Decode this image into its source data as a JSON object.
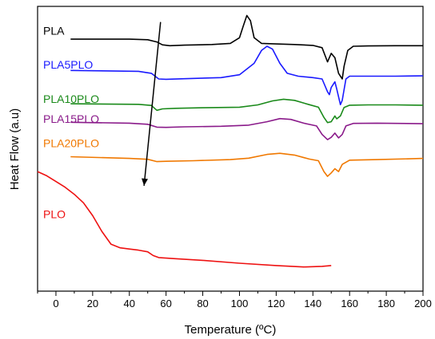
{
  "chart_data": {
    "type": "line",
    "title": "",
    "xlabel": "Temperature (ºC)",
    "ylabel": "Heat Flow (a.u)",
    "xlim": [
      -10,
      200
    ],
    "ylim": [
      0,
      100
    ],
    "xticks": [
      0,
      20,
      40,
      60,
      80,
      100,
      120,
      140,
      160,
      180,
      200
    ],
    "grid": false,
    "legend": "inline labels",
    "annotations": [
      {
        "type": "arrow",
        "from": [
          57,
          94.5
        ],
        "to": [
          48,
          37
        ]
      }
    ],
    "series": [
      {
        "name": "PLA",
        "color": "#000000",
        "label_at": [
          -10,
          91.5
        ],
        "points": [
          [
            8,
            88.5
          ],
          [
            40,
            88.5
          ],
          [
            50,
            88.3
          ],
          [
            55,
            87.5
          ],
          [
            58,
            86.5
          ],
          [
            62,
            86.2
          ],
          [
            70,
            86.4
          ],
          [
            85,
            86.6
          ],
          [
            95,
            87
          ],
          [
            100,
            89
          ],
          [
            102,
            93
          ],
          [
            104,
            96.8
          ],
          [
            106,
            95
          ],
          [
            108,
            89
          ],
          [
            112,
            87
          ],
          [
            120,
            86.8
          ],
          [
            130,
            86.6
          ],
          [
            140,
            86.3
          ],
          [
            145,
            85.5
          ],
          [
            148,
            80.5
          ],
          [
            150,
            83.5
          ],
          [
            152,
            82
          ],
          [
            154,
            76.5
          ],
          [
            156,
            74.5
          ],
          [
            157,
            79
          ],
          [
            159,
            84.5
          ],
          [
            162,
            86
          ],
          [
            170,
            86.1
          ],
          [
            185,
            86.2
          ],
          [
            200,
            86.2
          ]
        ]
      },
      {
        "name": "PLA5PLO",
        "color": "#1a1aff",
        "label_at": [
          -10,
          79.5
        ],
        "points": [
          [
            8,
            77.5
          ],
          [
            45,
            77.2
          ],
          [
            52,
            76.5
          ],
          [
            56,
            74.5
          ],
          [
            60,
            74.4
          ],
          [
            70,
            74.6
          ],
          [
            90,
            75
          ],
          [
            100,
            76
          ],
          [
            108,
            80
          ],
          [
            112,
            84.5
          ],
          [
            115,
            86
          ],
          [
            118,
            85
          ],
          [
            122,
            80
          ],
          [
            126,
            76.5
          ],
          [
            132,
            75.5
          ],
          [
            140,
            75
          ],
          [
            145,
            74.5
          ],
          [
            148,
            70
          ],
          [
            149,
            69
          ],
          [
            150,
            71.5
          ],
          [
            152,
            73.5
          ],
          [
            153,
            71
          ],
          [
            155,
            65.5
          ],
          [
            156,
            67
          ],
          [
            158,
            74.5
          ],
          [
            160,
            75.5
          ],
          [
            170,
            75.5
          ],
          [
            185,
            75.5
          ],
          [
            200,
            75.6
          ]
        ]
      },
      {
        "name": "PLA10PLO",
        "color": "#1a8a1a",
        "label_at": [
          -10,
          67.5
        ],
        "points": [
          [
            8,
            65.8
          ],
          [
            45,
            65.6
          ],
          [
            52,
            65.2
          ],
          [
            55,
            63.5
          ],
          [
            58,
            64
          ],
          [
            65,
            64.2
          ],
          [
            80,
            64.4
          ],
          [
            100,
            64.6
          ],
          [
            110,
            65.4
          ],
          [
            118,
            66.8
          ],
          [
            124,
            67.4
          ],
          [
            130,
            67
          ],
          [
            138,
            65.5
          ],
          [
            143,
            64.6
          ],
          [
            146,
            61
          ],
          [
            148,
            59.2
          ],
          [
            150,
            59.5
          ],
          [
            152,
            61.5
          ],
          [
            153,
            60.5
          ],
          [
            155,
            61.5
          ],
          [
            157,
            64.5
          ],
          [
            160,
            65.3
          ],
          [
            170,
            65.4
          ],
          [
            185,
            65.4
          ],
          [
            200,
            65.3
          ]
        ]
      },
      {
        "name": "PLA15PLO",
        "color": "#8a1a8a",
        "label_at": [
          -10,
          60.5
        ],
        "points": [
          [
            8,
            59.3
          ],
          [
            40,
            59
          ],
          [
            50,
            58.6
          ],
          [
            55,
            57.6
          ],
          [
            60,
            57.5
          ],
          [
            70,
            57.7
          ],
          [
            90,
            57.9
          ],
          [
            105,
            58.3
          ],
          [
            115,
            59.5
          ],
          [
            122,
            60.6
          ],
          [
            128,
            60.3
          ],
          [
            135,
            59
          ],
          [
            142,
            58
          ],
          [
            145,
            55
          ],
          [
            148,
            53.2
          ],
          [
            150,
            54
          ],
          [
            152,
            55.5
          ],
          [
            154,
            53.8
          ],
          [
            156,
            55
          ],
          [
            158,
            58
          ],
          [
            162,
            58.9
          ],
          [
            175,
            59
          ],
          [
            200,
            58.8
          ]
        ]
      },
      {
        "name": "PLA20PLO",
        "color": "#f07800",
        "label_at": [
          -10,
          52
        ],
        "points": [
          [
            8,
            47.2
          ],
          [
            40,
            46.6
          ],
          [
            50,
            46.3
          ],
          [
            55,
            45.5
          ],
          [
            60,
            45.6
          ],
          [
            75,
            45.8
          ],
          [
            95,
            46.2
          ],
          [
            105,
            46.7
          ],
          [
            115,
            48
          ],
          [
            122,
            48.4
          ],
          [
            130,
            47.8
          ],
          [
            138,
            46.4
          ],
          [
            143,
            45.8
          ],
          [
            146,
            42
          ],
          [
            148,
            40.3
          ],
          [
            150,
            41.5
          ],
          [
            152,
            43
          ],
          [
            154,
            42
          ],
          [
            156,
            44.5
          ],
          [
            160,
            46
          ],
          [
            175,
            46.2
          ],
          [
            200,
            46.6
          ]
        ]
      },
      {
        "name": "PLO",
        "color": "#ee1111",
        "label_at": [
          -10,
          27
        ],
        "points": [
          [
            -10,
            42
          ],
          [
            -5,
            40.5
          ],
          [
            0,
            38.5
          ],
          [
            5,
            36.5
          ],
          [
            10,
            34
          ],
          [
            15,
            31
          ],
          [
            20,
            26.5
          ],
          [
            25,
            21
          ],
          [
            30,
            16.5
          ],
          [
            35,
            15.2
          ],
          [
            40,
            14.8
          ],
          [
            45,
            14.4
          ],
          [
            50,
            13.8
          ],
          [
            53,
            12.5
          ],
          [
            56,
            11.8
          ],
          [
            65,
            11.4
          ],
          [
            80,
            10.8
          ],
          [
            100,
            9.8
          ],
          [
            120,
            9
          ],
          [
            135,
            8.5
          ],
          [
            145,
            8.7
          ],
          [
            150,
            9
          ]
        ]
      }
    ]
  }
}
